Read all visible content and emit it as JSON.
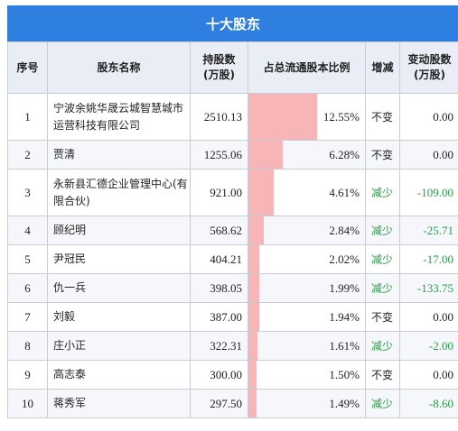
{
  "title": "十大股东",
  "headers": {
    "idx": "序号",
    "name": "股东名称",
    "shares": "持股数\n(万股)",
    "pct": "占总流通股本比例",
    "change": "增减",
    "delta": "变动股数\n(万股)"
  },
  "rows": [
    {
      "idx": "1",
      "name": "宁波余姚华晟云城智慧城市运营科技有限公司",
      "shares": "2510.13",
      "pct": "12.55%",
      "pct_value": 12.55,
      "change": "不变",
      "delta": "0.00"
    },
    {
      "idx": "2",
      "name": "贾清",
      "shares": "1255.06",
      "pct": "6.28%",
      "pct_value": 6.28,
      "change": "不变",
      "delta": "0.00"
    },
    {
      "idx": "3",
      "name": "永新县汇德企业管理中心(有限合伙)",
      "shares": "921.00",
      "pct": "4.61%",
      "pct_value": 4.61,
      "change": "减少",
      "delta": "-109.00"
    },
    {
      "idx": "4",
      "name": "顾纪明",
      "shares": "568.62",
      "pct": "2.84%",
      "pct_value": 2.84,
      "change": "减少",
      "delta": "-25.71"
    },
    {
      "idx": "5",
      "name": "尹冠民",
      "shares": "404.21",
      "pct": "2.02%",
      "pct_value": 2.02,
      "change": "减少",
      "delta": "-17.00"
    },
    {
      "idx": "6",
      "name": "仇一兵",
      "shares": "398.05",
      "pct": "1.99%",
      "pct_value": 1.99,
      "change": "减少",
      "delta": "-133.75"
    },
    {
      "idx": "7",
      "name": "刘毅",
      "shares": "387.00",
      "pct": "1.94%",
      "pct_value": 1.94,
      "change": "不变",
      "delta": "0.00"
    },
    {
      "idx": "8",
      "name": "庄小正",
      "shares": "322.31",
      "pct": "1.61%",
      "pct_value": 1.61,
      "change": "减少",
      "delta": "-2.00"
    },
    {
      "idx": "9",
      "name": "高志泰",
      "shares": "300.00",
      "pct": "1.50%",
      "pct_value": 1.5,
      "change": "不变",
      "delta": "0.00"
    },
    {
      "idx": "10",
      "name": "蒋秀军",
      "shares": "297.50",
      "pct": "1.49%",
      "pct_value": 1.49,
      "change": "减少",
      "delta": "-8.60"
    }
  ],
  "colors": {
    "header_bg": "#2f7fe0",
    "bar": "#f7b5b8",
    "decrease": "#2e9a4b"
  }
}
